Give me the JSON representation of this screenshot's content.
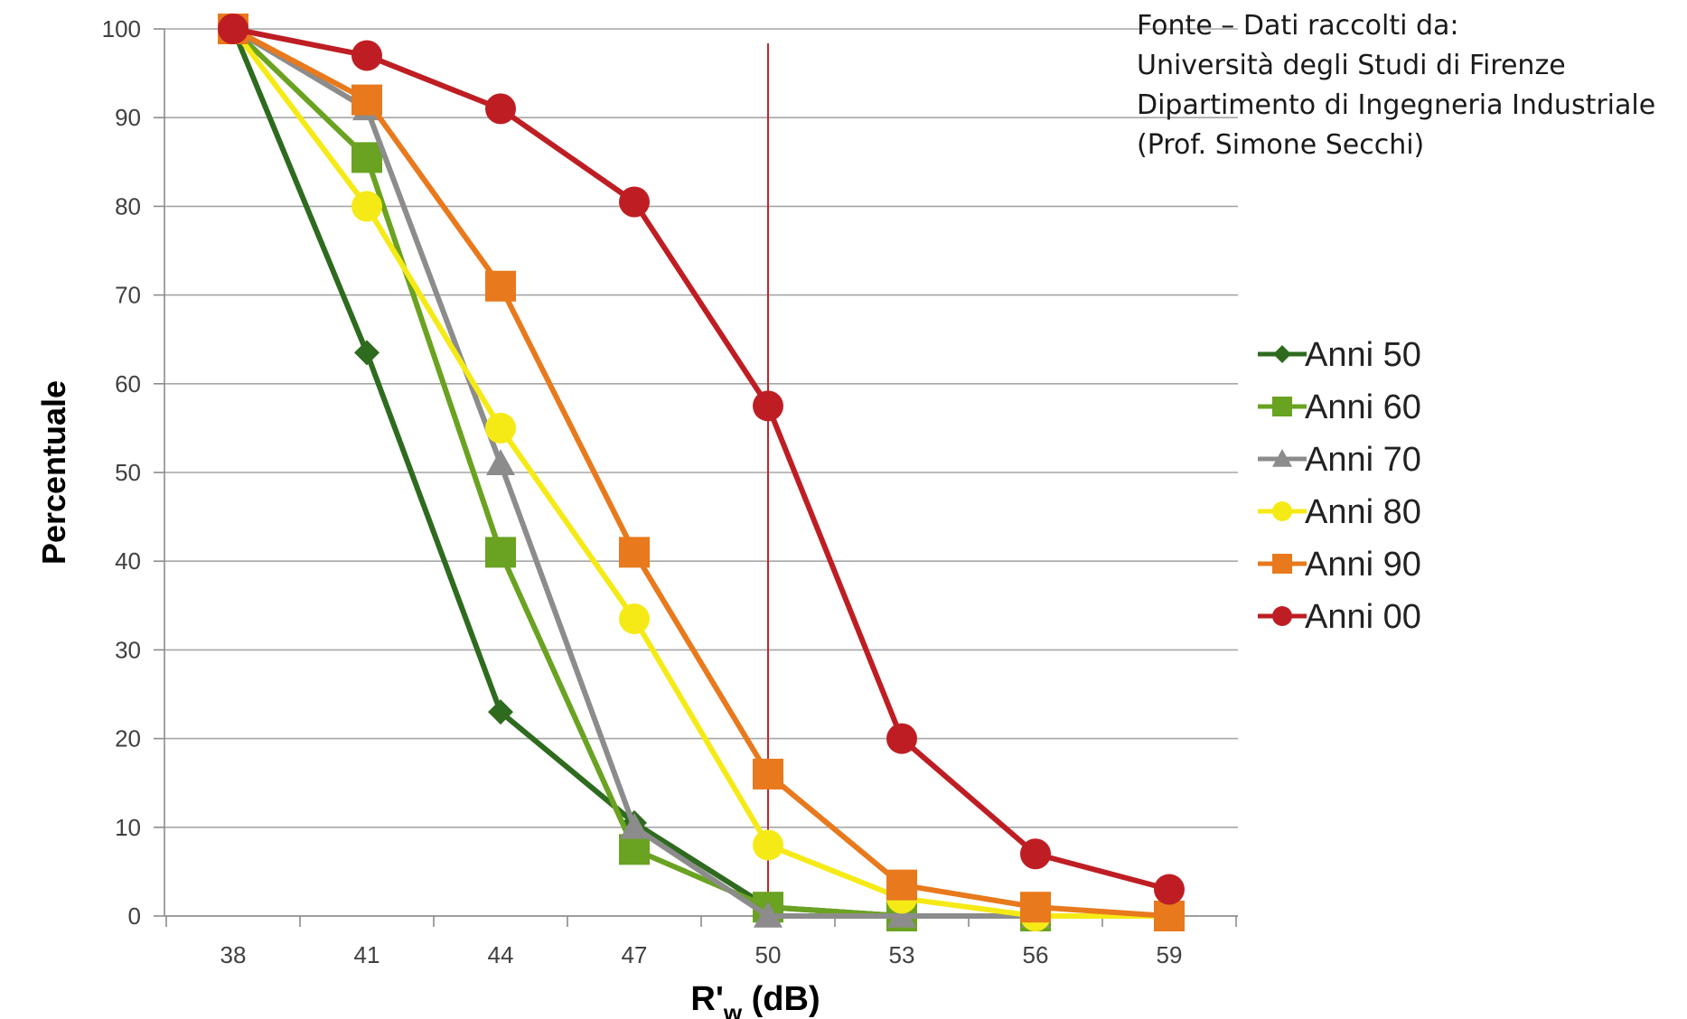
{
  "source_note": {
    "lines": [
      "Fonte – Dati raccolti da:",
      "Università degli Studi di Firenze",
      "Dipartimento di Ingegneria Industriale",
      "(Prof. Simone Secchi)"
    ]
  },
  "chart_data": {
    "type": "line",
    "xlabel_main": "R'",
    "xlabel_sub": "w",
    "xlabel_unit": " (dB)",
    "ylabel": "Percentuale",
    "categories": [
      "38",
      "41",
      "44",
      "47",
      "50",
      "53",
      "56",
      "59"
    ],
    "yticks": [
      0,
      10,
      20,
      30,
      40,
      50,
      60,
      70,
      80,
      90,
      100
    ],
    "ylim": [
      0,
      100
    ],
    "grid": "horizontal",
    "legend_position": "right",
    "reference_line_x": "50",
    "reference_line_color": "#c0262d",
    "series": [
      {
        "name": "Anni 50",
        "color": "#2e6b1f",
        "marker": "diamond",
        "values": [
          100,
          63.5,
          23,
          10.5,
          1,
          0,
          0,
          0
        ]
      },
      {
        "name": "Anni 60",
        "color": "#6aa221",
        "marker": "square",
        "values": [
          100,
          85.5,
          41,
          7.5,
          1,
          0,
          0,
          0
        ]
      },
      {
        "name": "Anni 70",
        "color": "#8c8c8c",
        "marker": "triangle",
        "values": [
          100,
          91,
          51,
          10,
          0,
          0,
          0,
          0
        ]
      },
      {
        "name": "Anni 80",
        "color": "#f5ea16",
        "marker": "circle",
        "values": [
          100,
          80,
          55,
          33.5,
          8,
          2,
          0,
          0
        ]
      },
      {
        "name": "Anni 90",
        "color": "#e8791c",
        "marker": "square",
        "values": [
          100,
          92,
          71,
          41,
          16,
          3.5,
          1,
          0
        ]
      },
      {
        "name": "Anni 00",
        "color": "#be1e23",
        "marker": "circle",
        "values": [
          100,
          97,
          91,
          80.5,
          57.5,
          20,
          7,
          3
        ]
      }
    ]
  }
}
